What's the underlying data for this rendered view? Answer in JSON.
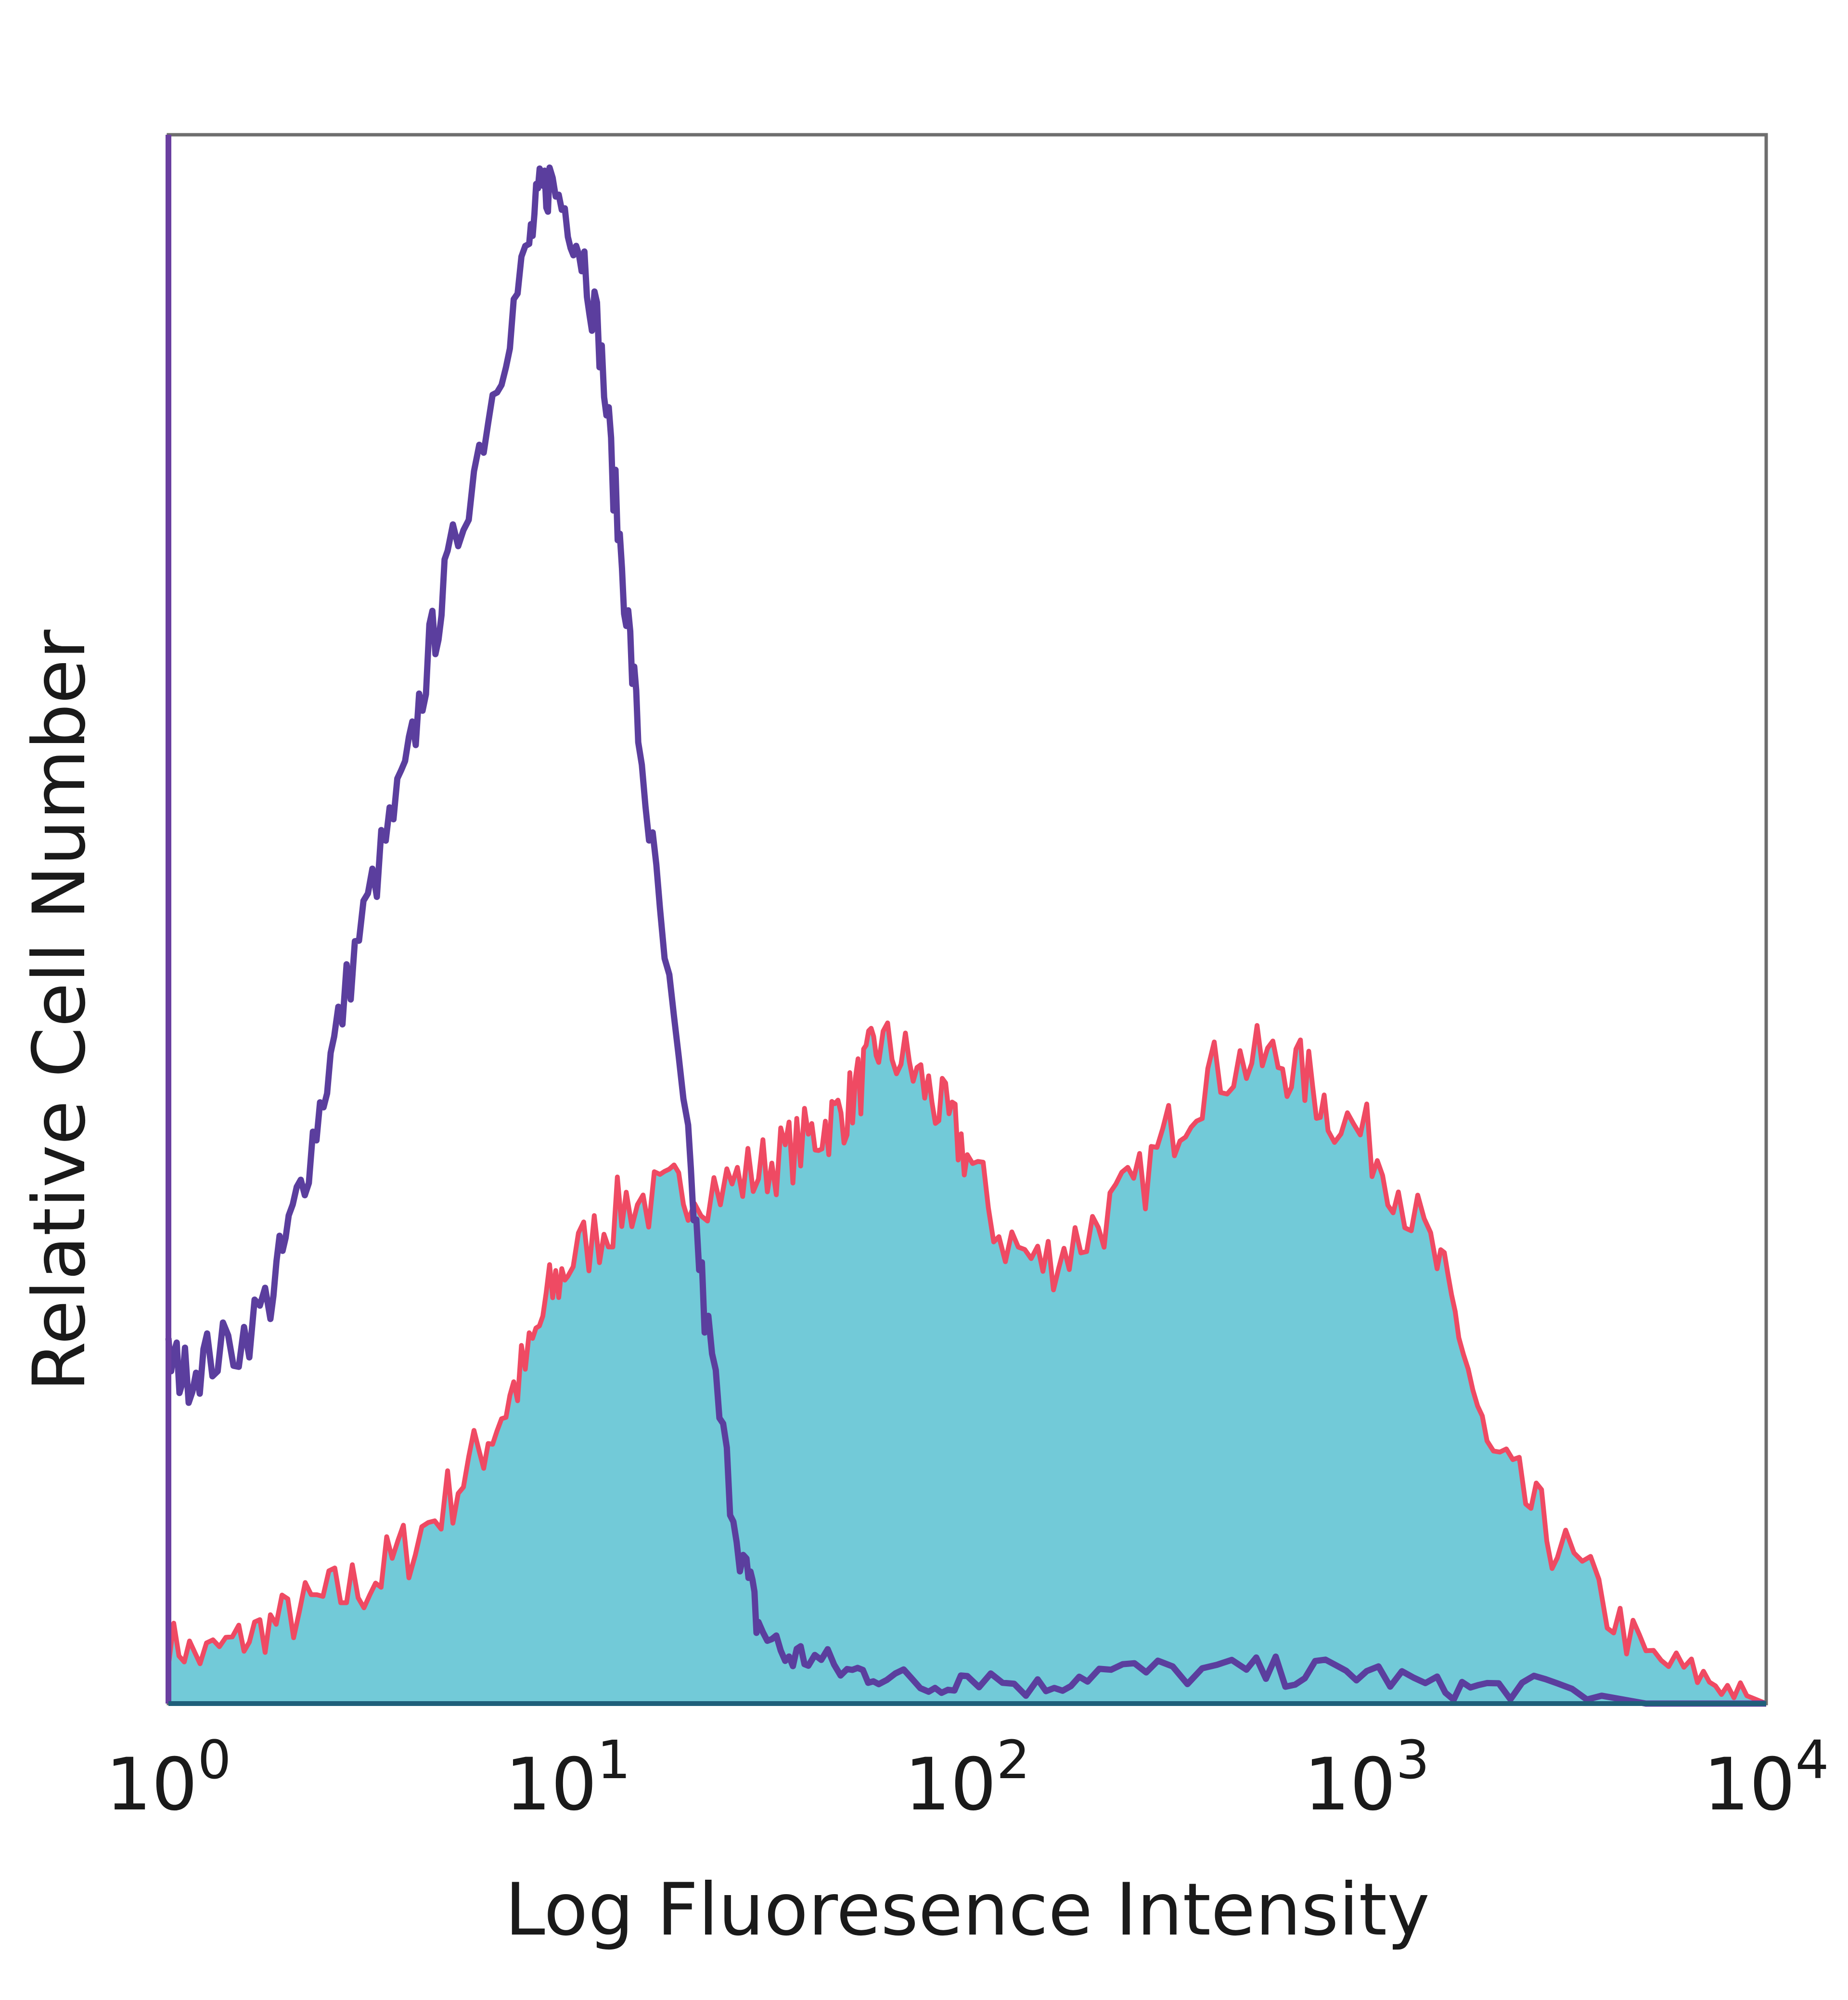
{
  "chart_data": {
    "type": "area",
    "title": "",
    "xlabel": "Log Fluoresence Intensity",
    "ylabel": "Relative Cell Number",
    "xscale": "log",
    "xlim": [
      1,
      10000
    ],
    "ylim": [
      0,
      100
    ],
    "grid": false,
    "legend": "none",
    "x_ticks": [
      {
        "value": 1,
        "base": "10",
        "exp": "0"
      },
      {
        "value": 10,
        "base": "10",
        "exp": "1"
      },
      {
        "value": 100,
        "base": "10",
        "exp": "2"
      },
      {
        "value": 1000,
        "base": "10",
        "exp": "3"
      },
      {
        "value": 10000,
        "base": "10",
        "exp": "4"
      }
    ],
    "series": [
      {
        "role": "stained sample (filled)",
        "fill_color": "#72cad8",
        "edge_color": "#ef4a63",
        "x": [
          1.0,
          1.2,
          1.5,
          1.8,
          2.2,
          2.7,
          3.3,
          4.0,
          5.0,
          6.0,
          7.0,
          8.0,
          9.0,
          10,
          12,
          14,
          17,
          20,
          25,
          30,
          35,
          40,
          45,
          50,
          55,
          60,
          70,
          80,
          90,
          100,
          120,
          150,
          180,
          220,
          270,
          330,
          400,
          500,
          600,
          700,
          800,
          1000,
          1200,
          1500,
          1700,
          2000,
          2500,
          3000,
          4000,
          5000,
          6500,
          8000,
          10000
        ],
        "y": [
          4,
          3,
          4,
          5,
          6,
          7,
          8,
          10,
          13,
          16,
          19,
          22,
          26,
          28,
          30,
          32,
          32,
          33,
          33,
          34,
          35,
          36,
          37,
          38,
          40,
          42,
          41,
          39,
          37,
          35,
          30,
          28,
          29,
          31,
          33,
          37,
          40,
          41,
          41,
          40,
          38,
          36,
          33,
          28,
          24,
          16,
          13,
          10,
          6,
          3,
          2,
          1,
          0
        ]
      },
      {
        "role": "isotype control (outline)",
        "line_color": "#5b3e9e",
        "x": [
          1.0,
          1.1,
          1.25,
          1.5,
          1.8,
          2.0,
          2.3,
          2.6,
          3.0,
          3.5,
          4.0,
          4.5,
          5.0,
          6.0,
          7.0,
          8.0,
          8.5,
          9.0,
          10,
          11,
          12,
          13,
          14,
          15,
          17,
          20,
          22,
          25,
          28,
          30,
          35,
          40,
          50,
          60,
          80,
          100,
          150,
          200,
          300,
          500,
          700,
          1000,
          1500,
          2000,
          3000,
          5000,
          10000
        ],
        "y": [
          22,
          21,
          22,
          23,
          26,
          30,
          36,
          42,
          49,
          55,
          60,
          67,
          72,
          80,
          87,
          93,
          96,
          97,
          95,
          92,
          87,
          78,
          70,
          62,
          50,
          35,
          25,
          15,
          8,
          5,
          3,
          3,
          2,
          2,
          1,
          2,
          1,
          2,
          2,
          2,
          2,
          2,
          1,
          1,
          1,
          0,
          0
        ]
      }
    ]
  }
}
